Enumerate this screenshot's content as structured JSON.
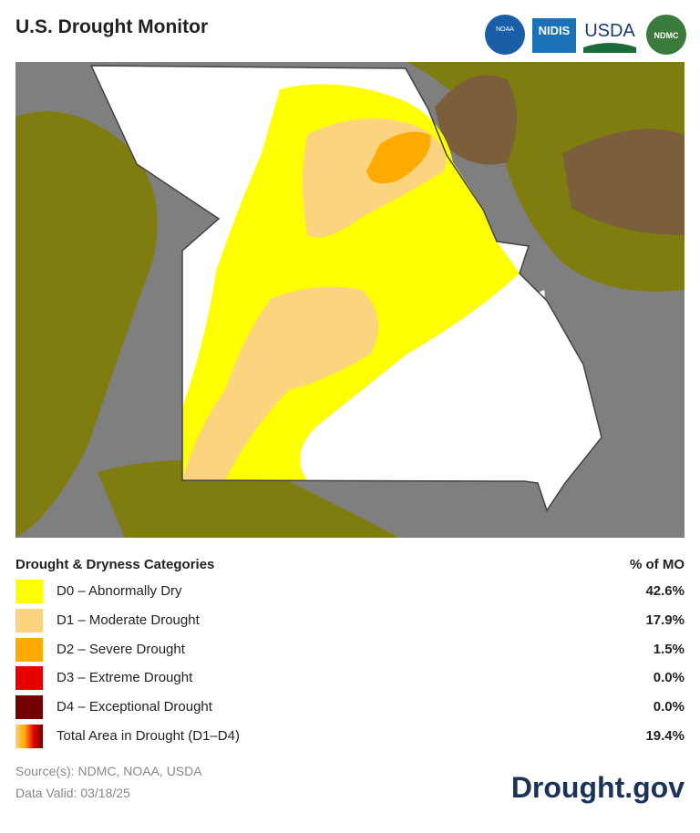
{
  "header": {
    "title": "U.S. Drought Monitor",
    "logos": [
      "NOAA",
      "NIDIS",
      "USDA",
      "NDMC"
    ]
  },
  "legend": {
    "title": "Drought & Dryness Categories",
    "column_header": "% of MO",
    "items": [
      {
        "label": "D0 – Abnormally Dry",
        "value": "42.6%",
        "color": "#ffff00"
      },
      {
        "label": "D1 – Moderate Drought",
        "value": "17.9%",
        "color": "#fcd37f"
      },
      {
        "label": "D2 – Severe Drought",
        "value": "1.5%",
        "color": "#ffaa00"
      },
      {
        "label": "D3 – Extreme Drought",
        "value": "0.0%",
        "color": "#e60000"
      },
      {
        "label": "D4 – Exceptional Drought",
        "value": "0.0%",
        "color": "#730000"
      },
      {
        "label": "Total Area in Drought (D1–D4)",
        "value": "19.4%"
      }
    ]
  },
  "footer": {
    "sources": "Source(s): NDMC, NOAA, USDA",
    "date": "Data Valid: 03/18/25",
    "brand": "Drought.gov"
  }
}
